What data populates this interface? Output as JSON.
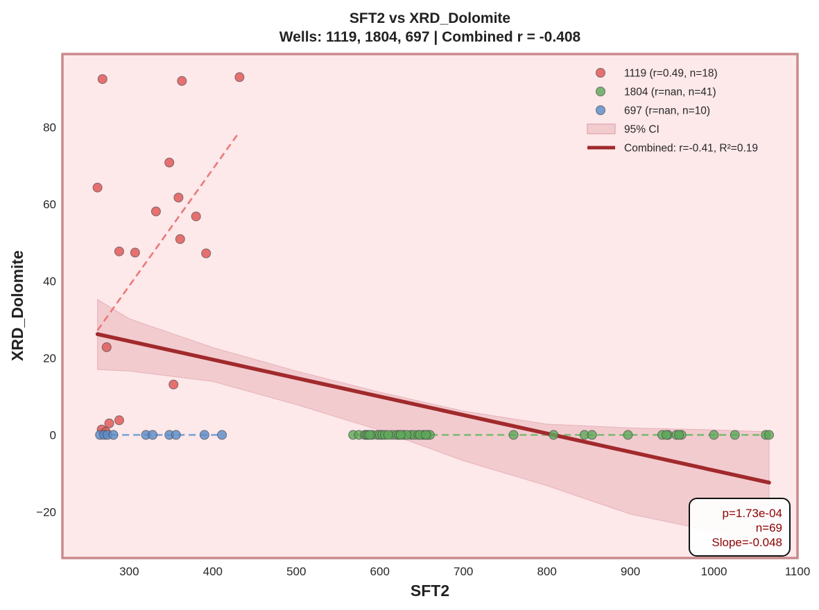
{
  "chart_data": {
    "type": "scatter",
    "title": "SFT2 vs XRD_Dolomite",
    "subtitle": "Wells: 1119, 1804, 697 | Combined r = -0.408",
    "xlabel": "SFT2",
    "ylabel": "XRD_Dolomite",
    "xlim": [
      220,
      1100
    ],
    "ylim": [
      -32,
      99
    ],
    "xticks": [
      300,
      400,
      500,
      600,
      700,
      800,
      900,
      1000,
      1100
    ],
    "yticks": [
      -20,
      0,
      20,
      40,
      60,
      80
    ],
    "ytick_labels": [
      "−20",
      "0",
      "20",
      "40",
      "60",
      "80"
    ],
    "grid": false,
    "legend_position": "top-right",
    "colors": {
      "plot_background": "#fde8ea",
      "plot_border": "#c98a8c",
      "combined_line": "#a12a2c",
      "ci_fill": "#e9b3b8",
      "stats_text": "#8b0000"
    },
    "series": [
      {
        "name": "1119 (r=0.49, n=18)",
        "color": "#e05555",
        "points": [
          [
            262,
            64.3
          ],
          [
            268,
            92.5
          ],
          [
            363,
            92.0
          ],
          [
            432,
            93.0
          ],
          [
            348,
            70.8
          ],
          [
            359,
            61.7
          ],
          [
            332,
            58.1
          ],
          [
            380,
            56.8
          ],
          [
            361,
            50.9
          ],
          [
            288,
            47.7
          ],
          [
            307,
            47.4
          ],
          [
            392,
            47.2
          ],
          [
            273,
            22.8
          ],
          [
            353,
            13.1
          ],
          [
            288,
            3.8
          ],
          [
            276,
            3.0
          ],
          [
            267,
            1.4
          ],
          [
            272,
            0.8
          ]
        ],
        "trend": {
          "x": [
            262,
            432
          ],
          "y": [
            27.2,
            78.8
          ],
          "style": "dashed",
          "color": "#ea7a78"
        }
      },
      {
        "name": "1804 (r=nan, n=41)",
        "color": "#5fa85a",
        "points": [
          [
            568,
            0
          ],
          [
            575,
            0
          ],
          [
            582,
            0
          ],
          [
            584,
            0
          ],
          [
            586,
            0
          ],
          [
            591,
            0
          ],
          [
            597,
            0
          ],
          [
            600,
            0
          ],
          [
            603,
            0
          ],
          [
            606,
            0
          ],
          [
            615,
            0
          ],
          [
            620,
            0
          ],
          [
            623,
            0
          ],
          [
            628,
            0
          ],
          [
            637,
            0
          ],
          [
            641,
            0
          ],
          [
            646,
            0
          ],
          [
            652,
            0
          ],
          [
            657,
            0
          ],
          [
            660,
            0
          ],
          [
            760,
            0
          ],
          [
            808,
            0
          ],
          [
            845,
            0
          ],
          [
            854,
            0
          ],
          [
            897,
            0
          ],
          [
            938,
            0
          ],
          [
            945,
            0
          ],
          [
            955,
            0
          ],
          [
            961,
            0
          ],
          [
            1000,
            0
          ],
          [
            1025,
            0
          ],
          [
            1062,
            0
          ],
          [
            1066,
            0
          ],
          [
            588,
            0
          ],
          [
            610,
            0
          ],
          [
            632,
            0
          ],
          [
            648,
            0
          ],
          [
            943,
            0
          ],
          [
            958,
            0
          ],
          [
            625,
            0
          ],
          [
            655,
            0
          ]
        ],
        "trend": {
          "x": [
            568,
            1066
          ],
          "y": [
            0,
            0
          ],
          "style": "dashed",
          "color": "#7dbb72"
        }
      },
      {
        "name": "697 (r=nan, n=10)",
        "color": "#5b8cc8",
        "points": [
          [
            265,
            0
          ],
          [
            270,
            0
          ],
          [
            274,
            0
          ],
          [
            281,
            0
          ],
          [
            320,
            0
          ],
          [
            328,
            0
          ],
          [
            348,
            0
          ],
          [
            356,
            0
          ],
          [
            390,
            0
          ],
          [
            411,
            0
          ]
        ],
        "trend": {
          "x": [
            265,
            411
          ],
          "y": [
            0,
            0
          ],
          "style": "dashed",
          "color": "#7aa6d8"
        }
      }
    ],
    "ci_band": {
      "name": "95% CI",
      "x": [
        262,
        300,
        400,
        500,
        600,
        700,
        800,
        900,
        1000,
        1066
      ],
      "upper": [
        35.2,
        30.2,
        22.7,
        16.6,
        11.1,
        6.2,
        2.8,
        1.8,
        1.3,
        0.8
      ],
      "lower": [
        17.0,
        16.6,
        13.9,
        7.9,
        1.2,
        -6.7,
        -13.2,
        -20.6,
        -25.1,
        -28.8
      ]
    },
    "combined_fit": {
      "name": "Combined: r=-0.41, R²=0.19",
      "x": [
        262,
        1066
      ],
      "y": [
        26.2,
        -12.4
      ]
    },
    "stats_box": {
      "lines": [
        "p=1.73e-04",
        "n=69",
        "Slope=-0.048"
      ],
      "position": "bottom-right"
    }
  }
}
